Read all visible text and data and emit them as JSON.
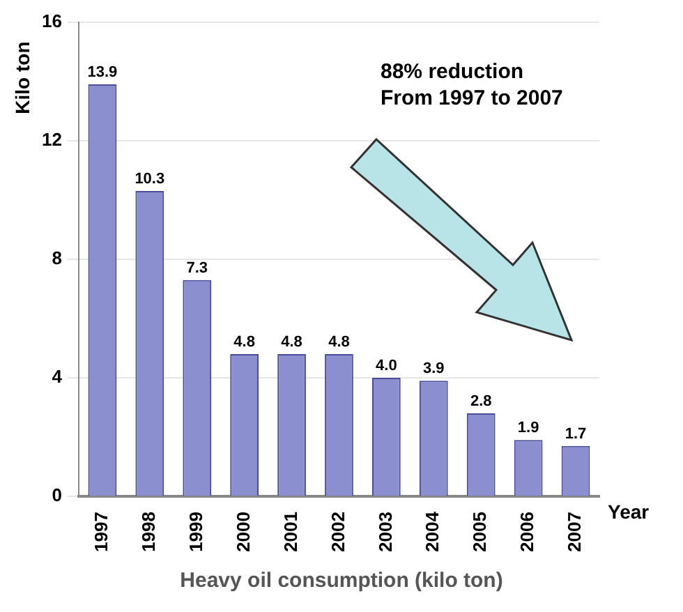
{
  "chart_data": {
    "type": "bar",
    "title": "Heavy oil consumption (kilo ton)",
    "xlabel": "Year",
    "ylabel": "Kilo ton",
    "categories": [
      "1997",
      "1998",
      "1999",
      "2000",
      "2001",
      "2002",
      "2003",
      "2004",
      "2005",
      "2006",
      "2007"
    ],
    "values": [
      13.9,
      10.3,
      7.3,
      4.8,
      4.8,
      4.8,
      4.0,
      3.9,
      2.8,
      1.9,
      1.7
    ],
    "color": "#8b8fd0",
    "ylim": [
      0,
      16
    ],
    "yticks": [
      0,
      4,
      8,
      12,
      16
    ],
    "value_labels": [
      "13.9",
      "10.3",
      "7.3",
      "4.8",
      "4.8",
      "4.8",
      "4.0",
      "3.9",
      "2.8",
      "1.9",
      "1.7"
    ],
    "grid": "y",
    "legend": false,
    "annotations": [
      "88% reduction\nFrom 1997 to 2007"
    ]
  }
}
